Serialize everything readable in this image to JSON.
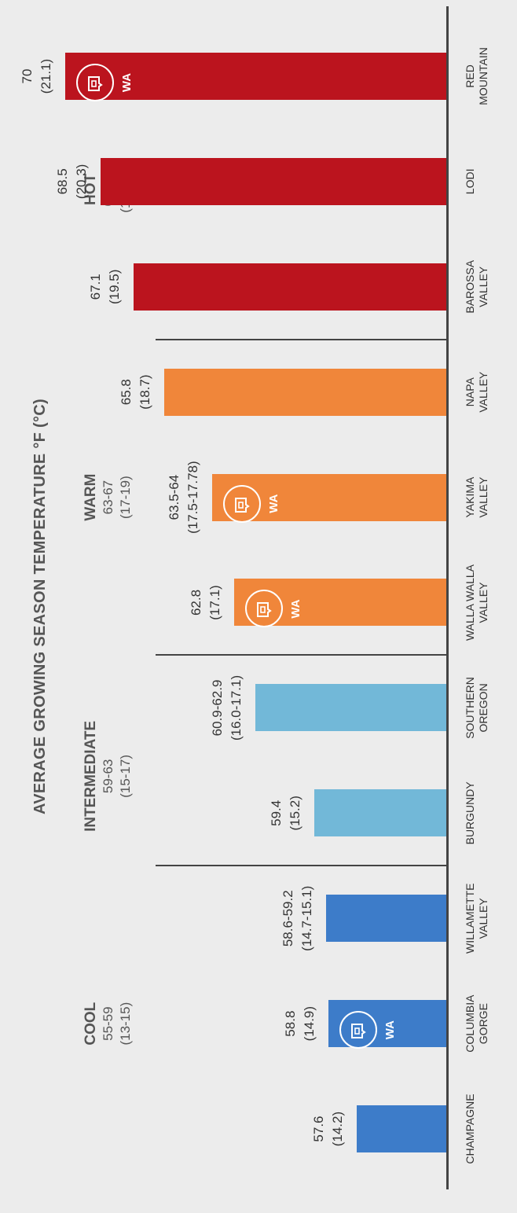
{
  "chart_data": {
    "type": "bar",
    "title": "AVERAGE GROWING SEASON TEMPERATURE °F (°C)",
    "ylim": [
      55,
      72
    ],
    "badge_text": "WA",
    "groups": [
      {
        "name": "COOL",
        "range_f": "55-59",
        "range_c": "(13-15)"
      },
      {
        "name": "INTERMEDIATE",
        "range_f": "59-63",
        "range_c": "(15-17)"
      },
      {
        "name": "WARM",
        "range_f": "63-67",
        "range_c": "(17-19)"
      },
      {
        "name": "HOT",
        "range_f": "67-72",
        "range_c": "(19-2 2)"
      }
    ],
    "categories": [
      {
        "line1": "CHAMPAGNE",
        "line2": "",
        "value": 57.6,
        "label_f": "57.6",
        "label_c": "(14.2)",
        "group": 0,
        "wa": false,
        "color": "#3d7cc9"
      },
      {
        "line1": "COLUMBIA",
        "line2": "GORGE",
        "value": 58.8,
        "label_f": "58.8",
        "label_c": "(14.9)",
        "group": 0,
        "wa": true,
        "color": "#3d7cc9"
      },
      {
        "line1": "WILLAMETTE",
        "line2": "VALLEY",
        "value": 58.9,
        "label_f": "58.6-59.2",
        "label_c": "(14.7-15.1)",
        "group": 0,
        "wa": false,
        "color": "#3d7cc9"
      },
      {
        "line1": "BURGUNDY",
        "line2": "",
        "value": 59.4,
        "label_f": "59.4",
        "label_c": "(15.2)",
        "group": 1,
        "wa": false,
        "color": "#72b8d8"
      },
      {
        "line1": "SOUTHERN",
        "line2": "OREGON",
        "value": 61.9,
        "label_f": "60.9-62.9",
        "label_c": "(16.0-17.1)",
        "group": 1,
        "wa": false,
        "color": "#72b8d8"
      },
      {
        "line1": "WALLA WALLA",
        "line2": "VALLEY",
        "value": 62.8,
        "label_f": "62.8",
        "label_c": "(17.1)",
        "group": 2,
        "wa": true,
        "color": "#f0863a"
      },
      {
        "line1": "YAKIMA",
        "line2": "VALLEY",
        "value": 63.75,
        "label_f": "63.5-64",
        "label_c": "(17.5-17.78)",
        "group": 2,
        "wa": true,
        "color": "#f0863a"
      },
      {
        "line1": "NAPA",
        "line2": "VALLEY",
        "value": 65.8,
        "label_f": "65.8",
        "label_c": "(18.7)",
        "group": 2,
        "wa": false,
        "color": "#f0863a"
      },
      {
        "line1": "BAROSSA",
        "line2": "VALLEY",
        "value": 67.1,
        "label_f": "67.1",
        "label_c": "(19.5)",
        "group": 3,
        "wa": false,
        "color": "#bb141e"
      },
      {
        "line1": "LODI",
        "line2": "",
        "value": 68.5,
        "label_f": "68.5",
        "label_c": "(20.3)",
        "group": 3,
        "wa": false,
        "color": "#bb141e"
      },
      {
        "line1": "RED",
        "line2": "MOUNTAIN",
        "value": 70,
        "label_f": "70",
        "label_c": "(21.1)",
        "group": 3,
        "wa": true,
        "color": "#bb141e"
      }
    ]
  }
}
